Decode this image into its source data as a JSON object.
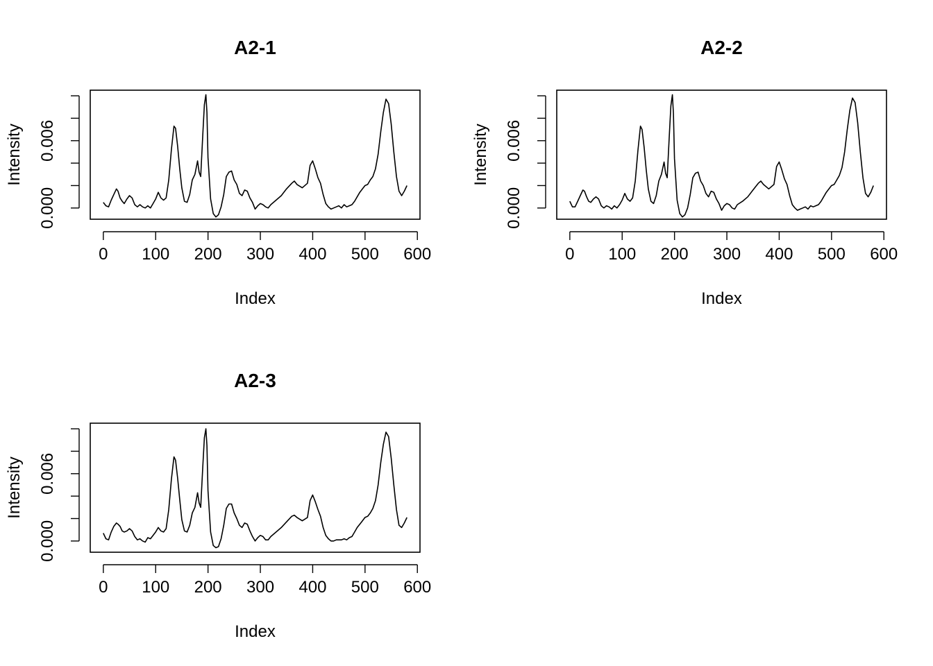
{
  "chart_data": [
    {
      "type": "line",
      "title": "A2-1",
      "xlabel": "Index",
      "ylabel": "Intensity",
      "xlim": [
        -25,
        605
      ],
      "ylim": [
        -0.001,
        0.0105
      ],
      "xticks": [
        0,
        100,
        200,
        300,
        400,
        500,
        600
      ],
      "xtick_labels": [
        "0",
        "100",
        "200",
        "300",
        "400",
        "500",
        "600"
      ],
      "yticks": [
        0.0,
        0.002,
        0.004,
        0.006,
        0.008,
        0.01
      ],
      "ytick_labels": [
        "0.000",
        "",
        "",
        "0.006",
        "",
        ""
      ],
      "series": [
        {
          "x": [
            0,
            5,
            10,
            15,
            20,
            25,
            28,
            32,
            36,
            40,
            45,
            50,
            55,
            60,
            65,
            70,
            75,
            80,
            85,
            90,
            95,
            100,
            105,
            110,
            115,
            120,
            125,
            130,
            135,
            138,
            142,
            146,
            150,
            155,
            160,
            165,
            170,
            175,
            180,
            183,
            186,
            190,
            193,
            196,
            198,
            200,
            205,
            210,
            215,
            220,
            225,
            230,
            235,
            240,
            245,
            250,
            255,
            260,
            265,
            270,
            275,
            280,
            285,
            290,
            295,
            300,
            305,
            310,
            315,
            320,
            330,
            340,
            350,
            360,
            365,
            370,
            380,
            390,
            395,
            400,
            405,
            410,
            415,
            420,
            425,
            430,
            435,
            440,
            445,
            450,
            455,
            460,
            465,
            470,
            475,
            480,
            485,
            490,
            495,
            500,
            505,
            510,
            515,
            520,
            525,
            530,
            535,
            540,
            545,
            550,
            555,
            560,
            565,
            570,
            575,
            580
          ],
          "y": [
            0.0005,
            0.0002,
            0.0001,
            0.0007,
            0.0012,
            0.0017,
            0.0015,
            0.0009,
            0.0006,
            0.0004,
            0.0008,
            0.0011,
            0.0009,
            0.0003,
            0.0001,
            0.0003,
            0.0001,
            0.0,
            0.0002,
            0.0,
            0.0004,
            0.0008,
            0.0014,
            0.0009,
            0.0007,
            0.0009,
            0.0025,
            0.0052,
            0.0073,
            0.0071,
            0.0055,
            0.0035,
            0.0018,
            0.0006,
            0.0005,
            0.0012,
            0.0025,
            0.003,
            0.0042,
            0.0032,
            0.0028,
            0.0065,
            0.0092,
            0.0101,
            0.0085,
            0.0045,
            0.0008,
            -0.0005,
            -0.0008,
            -0.0006,
            0.0001,
            0.0012,
            0.0028,
            0.0032,
            0.0033,
            0.0025,
            0.0021,
            0.0013,
            0.0011,
            0.0016,
            0.0015,
            0.0009,
            0.0005,
            -0.0001,
            0.0002,
            0.0004,
            0.0003,
            0.0001,
            0.0,
            0.0003,
            0.0007,
            0.0011,
            0.0017,
            0.0022,
            0.0024,
            0.0021,
            0.0018,
            0.0022,
            0.0038,
            0.0042,
            0.0035,
            0.0027,
            0.0022,
            0.0012,
            0.0004,
            0.0001,
            -0.0001,
            0.0,
            0.0001,
            0.0002,
            0.0,
            0.0003,
            0.0001,
            0.0002,
            0.0003,
            0.0006,
            0.001,
            0.0014,
            0.0017,
            0.002,
            0.0021,
            0.0025,
            0.0028,
            0.0035,
            0.0048,
            0.0068,
            0.0085,
            0.0097,
            0.0093,
            0.0075,
            0.005,
            0.0028,
            0.0015,
            0.0011,
            0.0015,
            0.002
          ]
        }
      ]
    },
    {
      "type": "line",
      "title": "A2-2",
      "xlabel": "Index",
      "ylabel": "Intensity",
      "xlim": [
        -25,
        605
      ],
      "ylim": [
        -0.001,
        0.0105
      ],
      "xticks": [
        0,
        100,
        200,
        300,
        400,
        500,
        600
      ],
      "xtick_labels": [
        "0",
        "100",
        "200",
        "300",
        "400",
        "500",
        "600"
      ],
      "yticks": [
        0.0,
        0.002,
        0.004,
        0.006,
        0.008,
        0.01
      ],
      "ytick_labels": [
        "0.000",
        "",
        "",
        "0.006",
        "",
        ""
      ],
      "series": [
        {
          "x": [
            0,
            5,
            10,
            15,
            20,
            25,
            28,
            32,
            36,
            40,
            45,
            50,
            55,
            60,
            65,
            70,
            75,
            80,
            85,
            90,
            95,
            100,
            105,
            110,
            115,
            120,
            125,
            130,
            135,
            138,
            142,
            146,
            150,
            155,
            160,
            165,
            170,
            175,
            180,
            183,
            186,
            190,
            193,
            196,
            198,
            200,
            205,
            210,
            215,
            220,
            225,
            230,
            235,
            240,
            245,
            250,
            255,
            260,
            265,
            270,
            275,
            280,
            285,
            290,
            295,
            300,
            305,
            310,
            315,
            320,
            330,
            340,
            350,
            360,
            365,
            370,
            380,
            390,
            395,
            400,
            405,
            410,
            415,
            420,
            425,
            430,
            435,
            440,
            445,
            450,
            455,
            460,
            465,
            470,
            475,
            480,
            485,
            490,
            495,
            500,
            505,
            510,
            515,
            520,
            525,
            530,
            535,
            540,
            545,
            550,
            555,
            560,
            565,
            570,
            575,
            580
          ],
          "y": [
            0.0006,
            0.0001,
            0.0001,
            0.0006,
            0.0011,
            0.0016,
            0.0015,
            0.001,
            0.0006,
            0.0005,
            0.0008,
            0.001,
            0.0008,
            0.0002,
            0.0,
            0.0002,
            0.0001,
            -0.0001,
            0.0002,
            0.0,
            0.0003,
            0.0007,
            0.0013,
            0.0008,
            0.0006,
            0.0009,
            0.0024,
            0.0051,
            0.0073,
            0.007,
            0.0054,
            0.0034,
            0.0017,
            0.0006,
            0.0004,
            0.0011,
            0.0024,
            0.003,
            0.0041,
            0.0031,
            0.0027,
            0.0064,
            0.0091,
            0.0101,
            0.0084,
            0.0044,
            0.0007,
            -0.0005,
            -0.0008,
            -0.0006,
            0.0,
            0.0012,
            0.0027,
            0.0031,
            0.0032,
            0.0024,
            0.002,
            0.0013,
            0.001,
            0.0015,
            0.0014,
            0.0008,
            0.0004,
            -0.0002,
            0.0002,
            0.0004,
            0.0003,
            0.0,
            -0.0001,
            0.0003,
            0.0006,
            0.001,
            0.0016,
            0.0022,
            0.0024,
            0.0021,
            0.0017,
            0.0021,
            0.0037,
            0.0041,
            0.0034,
            0.0026,
            0.0021,
            0.0011,
            0.0003,
            0.0,
            -0.0002,
            -0.0001,
            0.0,
            0.0001,
            -0.0001,
            0.0002,
            0.0001,
            0.0002,
            0.0003,
            0.0006,
            0.001,
            0.0014,
            0.0017,
            0.002,
            0.0021,
            0.0025,
            0.0029,
            0.0036,
            0.005,
            0.007,
            0.0087,
            0.0098,
            0.0094,
            0.0076,
            0.005,
            0.0027,
            0.0013,
            0.001,
            0.0014,
            0.002
          ]
        }
      ]
    },
    {
      "type": "line",
      "title": "A2-3",
      "xlabel": "Index",
      "ylabel": "Intensity",
      "xlim": [
        -25,
        605
      ],
      "ylim": [
        -0.001,
        0.0105
      ],
      "xticks": [
        0,
        100,
        200,
        300,
        400,
        500,
        600
      ],
      "xtick_labels": [
        "0",
        "100",
        "200",
        "300",
        "400",
        "500",
        "600"
      ],
      "yticks": [
        0.0,
        0.002,
        0.004,
        0.006,
        0.008,
        0.01
      ],
      "ytick_labels": [
        "0.000",
        "",
        "",
        "0.006",
        "",
        ""
      ],
      "series": [
        {
          "x": [
            0,
            5,
            10,
            15,
            20,
            25,
            28,
            32,
            36,
            40,
            45,
            50,
            55,
            60,
            65,
            70,
            75,
            80,
            85,
            90,
            95,
            100,
            105,
            110,
            115,
            120,
            125,
            130,
            135,
            138,
            142,
            146,
            150,
            155,
            160,
            165,
            170,
            175,
            180,
            183,
            186,
            190,
            193,
            196,
            198,
            200,
            205,
            210,
            215,
            220,
            225,
            230,
            235,
            240,
            245,
            250,
            255,
            260,
            265,
            270,
            275,
            280,
            285,
            290,
            295,
            300,
            305,
            310,
            315,
            320,
            330,
            340,
            350,
            360,
            365,
            370,
            380,
            390,
            395,
            400,
            405,
            410,
            415,
            420,
            425,
            430,
            435,
            440,
            445,
            450,
            455,
            460,
            465,
            470,
            475,
            480,
            485,
            490,
            495,
            500,
            505,
            510,
            515,
            520,
            525,
            530,
            535,
            540,
            545,
            550,
            555,
            560,
            565,
            570,
            575,
            580
          ],
          "y": [
            0.0007,
            0.0002,
            0.0001,
            0.0008,
            0.0013,
            0.0016,
            0.0015,
            0.0013,
            0.0009,
            0.0008,
            0.0009,
            0.0011,
            0.0009,
            0.0004,
            0.0001,
            0.0002,
            0.0,
            -0.0001,
            0.0003,
            0.0002,
            0.0005,
            0.0008,
            0.0012,
            0.0009,
            0.0008,
            0.0011,
            0.0028,
            0.0055,
            0.0075,
            0.0072,
            0.0056,
            0.0037,
            0.0019,
            0.0009,
            0.0008,
            0.0014,
            0.0025,
            0.003,
            0.0043,
            0.0034,
            0.003,
            0.0066,
            0.0092,
            0.01,
            0.0085,
            0.0045,
            0.0008,
            -0.0004,
            -0.0006,
            -0.0005,
            0.0002,
            0.0014,
            0.0029,
            0.0033,
            0.0033,
            0.0025,
            0.002,
            0.0014,
            0.0012,
            0.0016,
            0.0015,
            0.0009,
            0.0004,
            0.0,
            0.0003,
            0.0005,
            0.0004,
            0.0001,
            0.0001,
            0.0004,
            0.0008,
            0.0012,
            0.0017,
            0.0022,
            0.0023,
            0.0021,
            0.0018,
            0.0021,
            0.0036,
            0.0041,
            0.0035,
            0.0028,
            0.0022,
            0.0012,
            0.0005,
            0.0002,
            0.0,
            0.0,
            0.0001,
            0.0001,
            0.0001,
            0.0002,
            0.0001,
            0.0003,
            0.0004,
            0.0008,
            0.0012,
            0.0015,
            0.0018,
            0.0021,
            0.0022,
            0.0025,
            0.0029,
            0.0036,
            0.005,
            0.007,
            0.0086,
            0.0097,
            0.0093,
            0.0074,
            0.005,
            0.0028,
            0.0014,
            0.0012,
            0.0016,
            0.0021
          ]
        }
      ]
    }
  ]
}
